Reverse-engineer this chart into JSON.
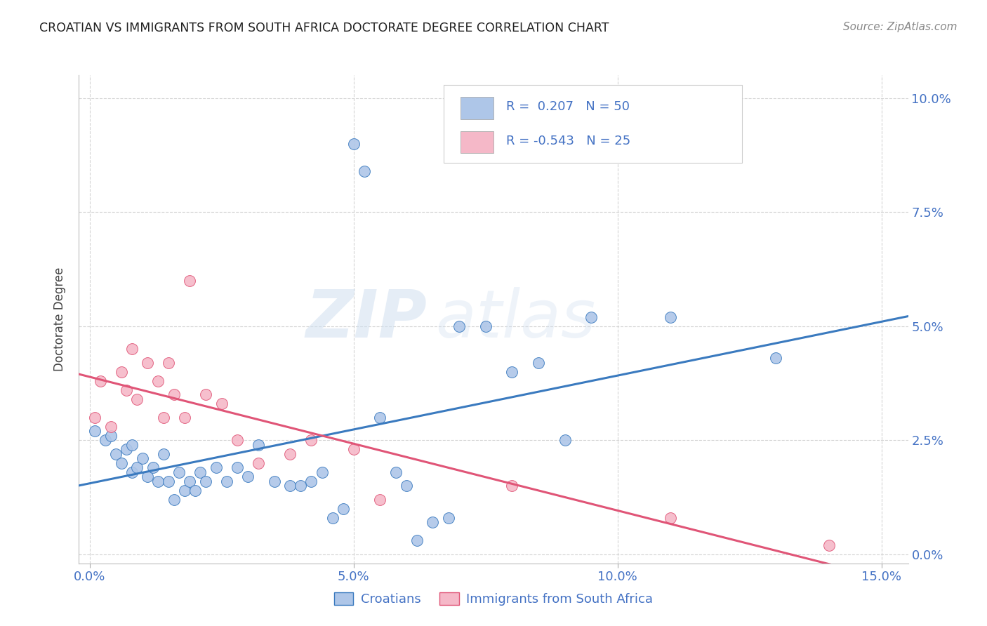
{
  "title": "CROATIAN VS IMMIGRANTS FROM SOUTH AFRICA DOCTORATE DEGREE CORRELATION CHART",
  "source": "Source: ZipAtlas.com",
  "ylabel": "Doctorate Degree",
  "xlabel_vals": [
    0.0,
    0.05,
    0.1,
    0.15
  ],
  "ylabel_vals": [
    0.0,
    0.025,
    0.05,
    0.075,
    0.1
  ],
  "xlim": [
    -0.002,
    0.155
  ],
  "ylim": [
    -0.002,
    0.105
  ],
  "blue_color": "#aec6e8",
  "pink_color": "#f5b8c8",
  "blue_line_color": "#3a7abf",
  "pink_line_color": "#e05577",
  "blue_R": 0.207,
  "blue_N": 50,
  "pink_R": -0.543,
  "pink_N": 25,
  "legend_label_blue": "Croatians",
  "legend_label_pink": "Immigrants from South Africa",
  "watermark_zip": "ZIP",
  "watermark_atlas": "atlas",
  "background_color": "#ffffff",
  "grid_color": "#d0d0d0",
  "tick_color": "#4472c4",
  "blue_x": [
    0.001,
    0.003,
    0.004,
    0.005,
    0.006,
    0.007,
    0.008,
    0.008,
    0.009,
    0.01,
    0.011,
    0.012,
    0.013,
    0.014,
    0.015,
    0.016,
    0.017,
    0.018,
    0.019,
    0.02,
    0.021,
    0.022,
    0.024,
    0.026,
    0.028,
    0.03,
    0.032,
    0.035,
    0.038,
    0.04,
    0.042,
    0.044,
    0.046,
    0.048,
    0.05,
    0.052,
    0.055,
    0.058,
    0.06,
    0.062,
    0.065,
    0.068,
    0.07,
    0.075,
    0.08,
    0.085,
    0.09,
    0.095,
    0.11,
    0.13
  ],
  "blue_y": [
    0.027,
    0.025,
    0.026,
    0.022,
    0.02,
    0.023,
    0.024,
    0.018,
    0.019,
    0.021,
    0.017,
    0.019,
    0.016,
    0.022,
    0.016,
    0.012,
    0.018,
    0.014,
    0.016,
    0.014,
    0.018,
    0.016,
    0.019,
    0.016,
    0.019,
    0.017,
    0.024,
    0.016,
    0.015,
    0.015,
    0.016,
    0.018,
    0.008,
    0.01,
    0.09,
    0.084,
    0.03,
    0.018,
    0.015,
    0.003,
    0.007,
    0.008,
    0.05,
    0.05,
    0.04,
    0.042,
    0.025,
    0.052,
    0.052,
    0.043
  ],
  "pink_x": [
    0.001,
    0.002,
    0.004,
    0.006,
    0.007,
    0.008,
    0.009,
    0.011,
    0.013,
    0.014,
    0.015,
    0.016,
    0.018,
    0.019,
    0.022,
    0.025,
    0.028,
    0.032,
    0.038,
    0.042,
    0.05,
    0.055,
    0.08,
    0.11,
    0.14
  ],
  "pink_y": [
    0.03,
    0.038,
    0.028,
    0.04,
    0.036,
    0.045,
    0.034,
    0.042,
    0.038,
    0.03,
    0.042,
    0.035,
    0.03,
    0.06,
    0.035,
    0.033,
    0.025,
    0.02,
    0.022,
    0.025,
    0.023,
    0.012,
    0.015,
    0.008,
    0.002
  ]
}
